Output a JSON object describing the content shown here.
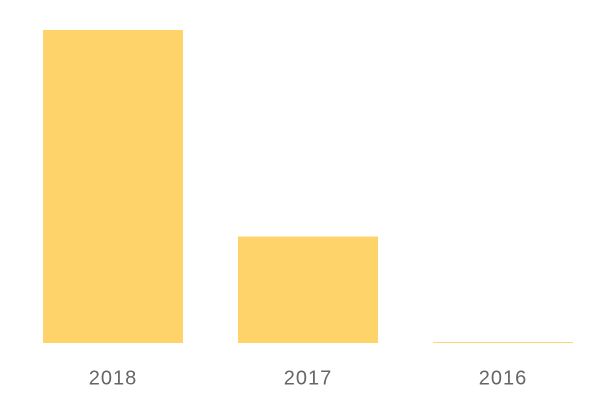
{
  "chart_data": {
    "type": "bar",
    "categories": [
      "2018",
      "2017",
      "2016"
    ],
    "values": [
      100,
      34,
      0.3
    ],
    "color": "#fed46a",
    "ylim": [
      0,
      100
    ]
  }
}
